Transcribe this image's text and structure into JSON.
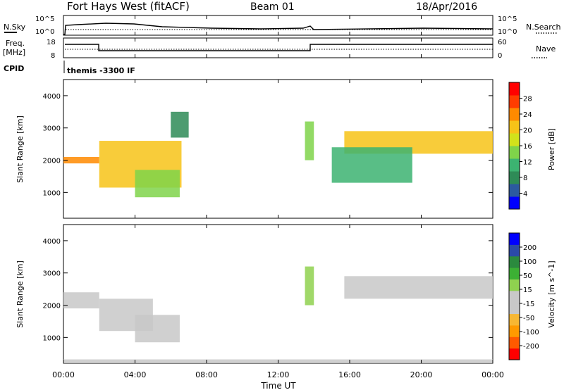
{
  "header": {
    "title": "Fort Hays West (fitACF)",
    "beam": "Beam 01",
    "date": "18/Apr/2016"
  },
  "top_panels": {
    "nsky_label": "N.Sky",
    "nsky_ticks": [
      "10^5",
      "10^0"
    ],
    "nsearch_label": "N.Search",
    "nsearch_ticks": [
      "10^5",
      "10^0"
    ],
    "freq_label": "Freq.",
    "freq_unit": "[MHz]",
    "freq_ticks": [
      "18",
      "8"
    ],
    "nave_label": "Nave",
    "nave_ticks": [
      "60",
      "0"
    ],
    "cpid_label": "CPID",
    "cpid_value": "themis -3300 IF"
  },
  "chart_data": [
    {
      "type": "heatmap",
      "ylabel": "Slant Range [km]",
      "ylim": [
        200,
        4500
      ],
      "yticks": [
        "1000",
        "2000",
        "3000",
        "4000"
      ],
      "colorbar": {
        "label": "Power [dB]",
        "ticks": [
          "28",
          "24",
          "20",
          "16",
          "12",
          "8",
          "4"
        ],
        "range": [
          0,
          30
        ],
        "colors": [
          "#0000ff",
          "#2c5aa0",
          "#2e8b57",
          "#3cb371",
          "#7fd34a",
          "#d2e21b",
          "#f7c318",
          "#ff8a00",
          "#ff3c00",
          "#ff0000"
        ]
      },
      "bands": [
        {
          "t0": 0.0,
          "t1": 2.0,
          "r0": 1900,
          "r1": 2100,
          "value": 22
        },
        {
          "t0": 2.0,
          "t1": 6.6,
          "r0": 1150,
          "r1": 2600,
          "value": 18
        },
        {
          "t0": 4.0,
          "t1": 6.5,
          "r0": 850,
          "r1": 1700,
          "value": 14
        },
        {
          "t0": 6.0,
          "t1": 7.0,
          "r0": 2700,
          "r1": 3500,
          "value": 6
        },
        {
          "t0": 13.5,
          "t1": 14.0,
          "r0": 2000,
          "r1": 3200,
          "value": 12
        },
        {
          "t0": 15.7,
          "t1": 24.0,
          "r0": 2200,
          "r1": 2900,
          "value": 20
        },
        {
          "t0": 15.0,
          "t1": 19.5,
          "r0": 1300,
          "r1": 2400,
          "value": 10
        }
      ]
    },
    {
      "type": "heatmap",
      "ylabel": "Slant Range [km]",
      "ylim": [
        200,
        4500
      ],
      "yticks": [
        "1000",
        "2000",
        "3000",
        "4000"
      ],
      "colorbar": {
        "label": "Velocity [m s^-1]",
        "ticks": [
          "200",
          "100",
          "50",
          "15",
          "-15",
          "-50",
          "-100",
          "-200"
        ],
        "range": [
          -250,
          250
        ],
        "colors": [
          "#ff0000",
          "#ff5a00",
          "#ff9a00",
          "#f7b733",
          "#c8c8c8",
          "#c8c8c8",
          "#8fd14f",
          "#3cb034",
          "#2b8a3e",
          "#2b4aa8",
          "#0000ff"
        ]
      },
      "bands": [
        {
          "t0": 0.0,
          "t1": 2.0,
          "r0": 1900,
          "r1": 2400,
          "value": 0
        },
        {
          "t0": 2.0,
          "t1": 5.0,
          "r0": 1200,
          "r1": 2200,
          "value": 0
        },
        {
          "t0": 4.0,
          "t1": 6.5,
          "r0": 850,
          "r1": 1700,
          "value": -40
        },
        {
          "t0": 13.5,
          "t1": 14.0,
          "r0": 2000,
          "r1": 3200,
          "value": 40
        },
        {
          "t0": 15.7,
          "t1": 24.0,
          "r0": 2200,
          "r1": 2900,
          "value": 0
        },
        {
          "t0": 0.0,
          "t1": 24.0,
          "r0": 200,
          "r1": 320,
          "value": -40
        }
      ]
    }
  ],
  "xaxis": {
    "label": "Time UT",
    "ticks": [
      "00:00",
      "04:00",
      "08:00",
      "12:00",
      "16:00",
      "20:00",
      "00:00"
    ]
  }
}
